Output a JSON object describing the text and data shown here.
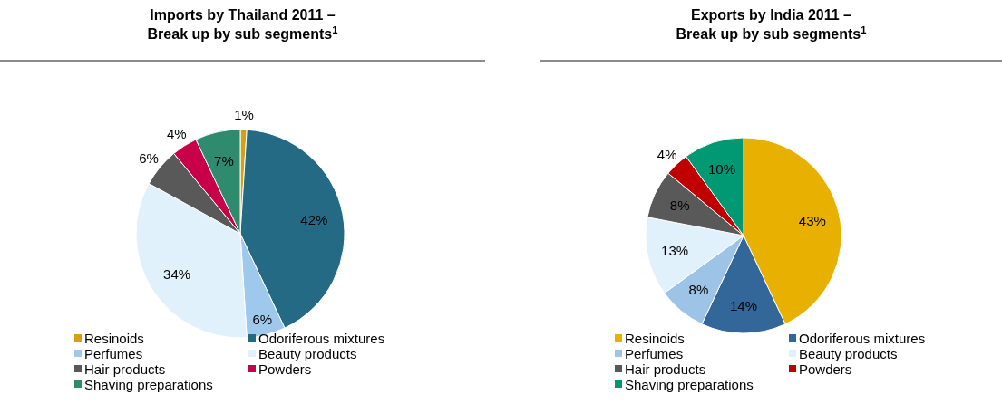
{
  "chart_data": [
    {
      "type": "pie",
      "title": "Imports by Thailand 2011 –\nBreak up by sub segments$^{1}$",
      "categories": [
        "Resinoids",
        "Odoriferous mixtures",
        "Perfumes",
        "Beauty products",
        "Hair products",
        "Powders",
        "Shaving preparations"
      ],
      "values": [
        1,
        42,
        6,
        34,
        6,
        4,
        7
      ],
      "colors": [
        "#d4a017",
        "#246a84",
        "#9ec8ec",
        "#e0f1fc",
        "#595959",
        "#c8004a",
        "#2e8b6e"
      ],
      "value_labels": [
        "1%",
        "42%",
        "6%",
        "34%",
        "6%",
        "4%",
        "7%"
      ],
      "legend": "bottom"
    },
    {
      "type": "pie",
      "title": "Exports by India 2011 –\nBreak up by sub segments$^{1}$",
      "categories": [
        "Resinoids",
        "Odoriferous mixtures",
        "Perfumes",
        "Beauty products",
        "Hair products",
        "Powders",
        "Shaving preparations"
      ],
      "values": [
        43,
        14,
        8,
        13,
        8,
        4,
        10
      ],
      "colors": [
        "#e8b000",
        "#336699",
        "#9dc3e6",
        "#e0f1fc",
        "#595959",
        "#c00000",
        "#009973"
      ],
      "value_labels": [
        "43%",
        "14%",
        "8%",
        "13%",
        "8%",
        "4%",
        "10%"
      ],
      "legend": "bottom"
    }
  ]
}
